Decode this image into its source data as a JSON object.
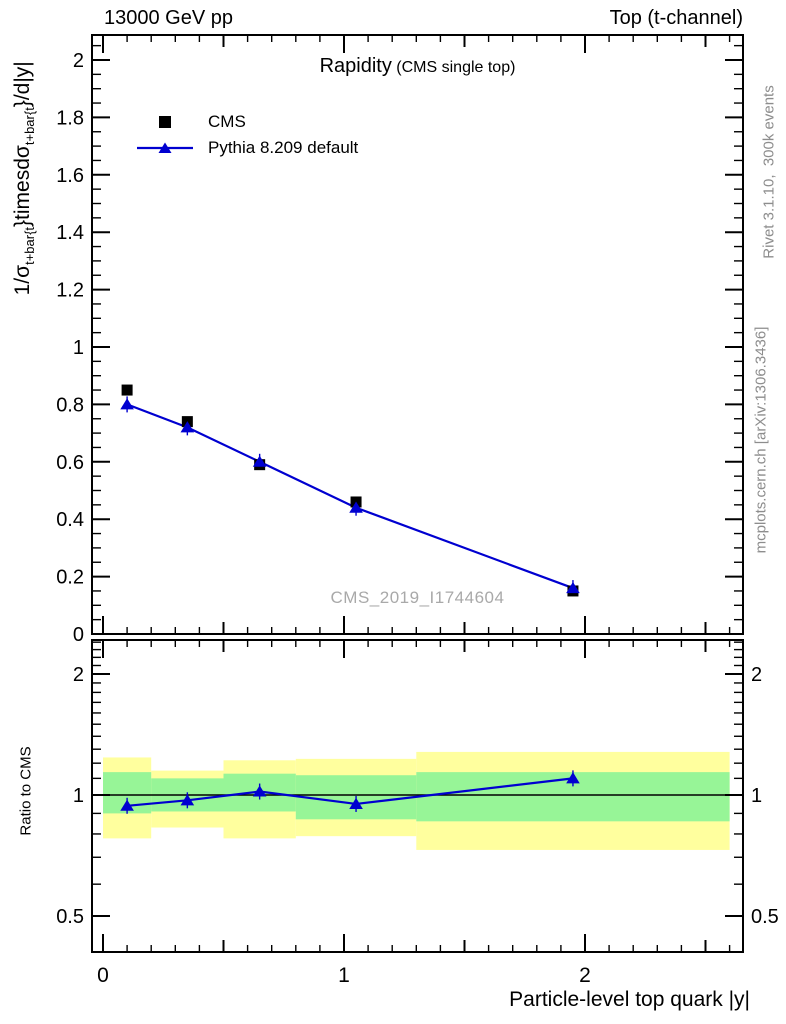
{
  "header": {
    "left": "13000 GeV pp",
    "right": "Top (t-channel)"
  },
  "title": {
    "main": "Rapidity",
    "paren": "(CMS single top)"
  },
  "legend": {
    "items": [
      {
        "label": "CMS",
        "marker": "black-square"
      },
      {
        "label": "Pythia 8.209 default",
        "marker": "blue-line-triangle"
      }
    ]
  },
  "side_notes": {
    "rivet": "Rivet 3.1.10,  300k events",
    "mcplots": "mcplots.cern.ch [arXiv:1306.3436]"
  },
  "watermark": "CMS_2019_I1744604",
  "x_axis_title": "Particle-level top quark |y|",
  "ratio_axis_title": "Ratio to CMS",
  "y_axis_title_parts": {
    "pre": "1/σ",
    "sub1": "t+bar{t",
    "mid": "}timesdσ",
    "sub2": "t+bar{t",
    "post": "}/d|y|"
  },
  "colors": {
    "pythia_blue": "#0000d0",
    "band_yellow": "#ffff9e",
    "band_green": "#97f597",
    "frame_black": "#000000"
  },
  "chart_data": {
    "type": "line",
    "title": "Rapidity (CMS single top)",
    "xlabel": "Particle-level top quark |y|",
    "ylabel": "1/sigma_{t+tbar} times dsigma_{t+tbar}/d|y|",
    "ratio_ylabel": "Ratio to CMS",
    "x": [
      0.1,
      0.35,
      0.65,
      1.05,
      1.95
    ],
    "bin_edges": [
      0,
      0.2,
      0.5,
      0.8,
      1.3,
      2.6
    ],
    "series": [
      {
        "name": "CMS",
        "marker": "square",
        "color": "#000000",
        "values": [
          0.85,
          0.74,
          0.59,
          0.46,
          0.15
        ]
      },
      {
        "name": "Pythia 8.209 default",
        "marker": "triangle",
        "color": "#0000d0",
        "values": [
          0.8,
          0.72,
          0.6,
          0.44,
          0.16
        ]
      }
    ],
    "ratio": {
      "values": [
        0.94,
        0.97,
        1.02,
        0.95,
        1.1
      ],
      "band_yellow_lo": [
        0.78,
        0.83,
        0.78,
        0.79,
        0.73
      ],
      "band_yellow_hi": [
        1.24,
        1.15,
        1.22,
        1.23,
        1.28
      ],
      "band_green_lo": [
        0.9,
        0.91,
        0.91,
        0.87,
        0.86
      ],
      "band_green_hi": [
        1.14,
        1.1,
        1.13,
        1.12,
        1.14
      ],
      "unity_line": 1
    },
    "axes": {
      "x": {
        "range": [
          -0.046,
          2.656
        ],
        "majors": [
          0,
          1,
          2
        ],
        "major_labels": [
          "0",
          "1",
          "2"
        ],
        "mediums": [
          0.5,
          1.5,
          2.5
        ],
        "minor_step": 0.1,
        "minor_span": [
          0,
          2.6
        ]
      },
      "y_main": {
        "range": [
          0,
          2.087
        ],
        "major_step": 0.2,
        "major_max": 2.0,
        "minor_step": 0.05,
        "major_values": [
          0,
          0.2,
          0.4,
          0.6,
          0.8,
          1.0,
          1.2,
          1.4,
          1.6,
          1.8,
          2.0
        ],
        "major_labels": [
          "0",
          "0.2",
          "0.4",
          "0.6",
          "0.8",
          "1",
          "1.2",
          "1.4",
          "1.6",
          "1.8",
          "2"
        ],
        "grid": false
      },
      "y_ratio": {
        "range": [
          0.407,
          2.43
        ],
        "scale": "log",
        "majors": [
          0.5,
          1,
          2
        ],
        "major_labels": [
          "0.5",
          "1",
          "2"
        ],
        "minors": [
          0.6,
          0.7,
          0.8,
          0.9,
          1.1,
          1.2,
          1.3,
          1.4,
          1.5,
          1.6,
          1.7,
          1.8,
          1.9,
          2.1,
          2.2,
          2.3,
          2.4
        ]
      }
    },
    "legend_position": "top-left"
  }
}
